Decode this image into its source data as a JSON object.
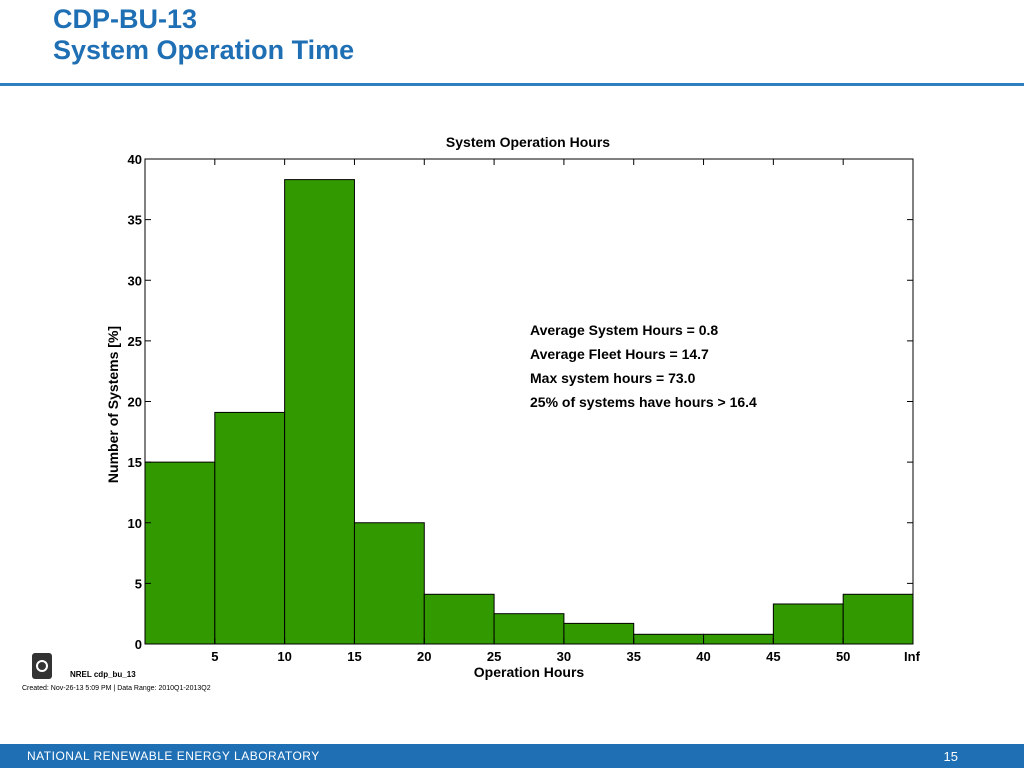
{
  "slide": {
    "title_line1": "CDP-BU-13",
    "title_line2": "System Operation Time",
    "accent_color": "#1f6fb4"
  },
  "chart_data": {
    "type": "bar",
    "title": "System Operation Hours",
    "xlabel": "Operation Hours",
    "ylabel": "Number of Systems [%]",
    "bins": [
      {
        "from": 0,
        "to": 5,
        "value": 15.0
      },
      {
        "from": 5,
        "to": 10,
        "value": 19.1
      },
      {
        "from": 10,
        "to": 15,
        "value": 38.3
      },
      {
        "from": 15,
        "to": 20,
        "value": 10.0
      },
      {
        "from": 20,
        "to": 25,
        "value": 4.1
      },
      {
        "from": 25,
        "to": 30,
        "value": 2.5
      },
      {
        "from": 30,
        "to": 35,
        "value": 1.7
      },
      {
        "from": 35,
        "to": 40,
        "value": 0.8
      },
      {
        "from": 40,
        "to": 45,
        "value": 0.8
      },
      {
        "from": 45,
        "to": 50,
        "value": 3.3
      },
      {
        "from": 50,
        "to": "Inf",
        "value": 4.1
      }
    ],
    "x_tick_labels": [
      "5",
      "10",
      "15",
      "20",
      "25",
      "30",
      "35",
      "40",
      "45",
      "50",
      "Inf"
    ],
    "y_ticks": [
      0,
      5,
      10,
      15,
      20,
      25,
      30,
      35,
      40
    ],
    "ylim": [
      0,
      40
    ],
    "bar_color": "#339900",
    "grid": false,
    "annotations": [
      "Average System Hours = 0.8",
      "Average Fleet Hours = 14.7",
      "Max system hours = 73.0",
      "25% of systems have hours > 16.4"
    ]
  },
  "meta": {
    "chart_id": "NREL cdp_bu_13",
    "created": "Created: Nov-26-13  5:09 PM | Data Range: 2010Q1-2013Q2"
  },
  "footer": {
    "org": "NATIONAL RENEWABLE ENERGY LABORATORY",
    "page": "15"
  }
}
